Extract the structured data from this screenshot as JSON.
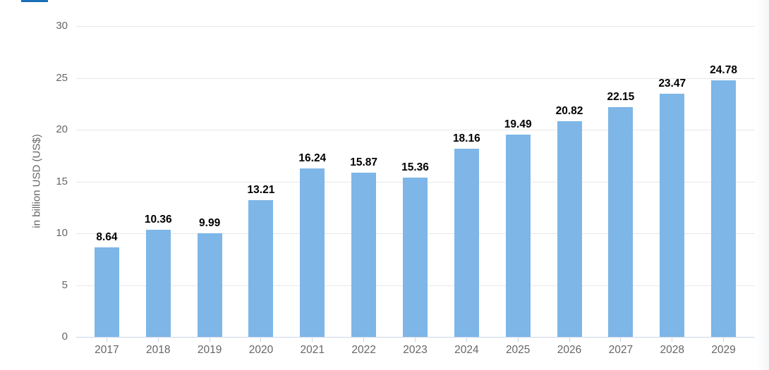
{
  "tab_indicator": {
    "color": "#1a70b8"
  },
  "chart_data": {
    "type": "bar",
    "categories": [
      "2017",
      "2018",
      "2019",
      "2020",
      "2021",
      "2022",
      "2023",
      "2024",
      "2025",
      "2026",
      "2027",
      "2028",
      "2029"
    ],
    "values": [
      8.64,
      10.36,
      9.99,
      13.21,
      16.24,
      15.87,
      15.36,
      18.16,
      19.49,
      20.82,
      22.15,
      23.47,
      24.78
    ],
    "value_labels": [
      "8.64",
      "10.36",
      "9.99",
      "13.21",
      "16.24",
      "15.87",
      "15.36",
      "18.16",
      "19.49",
      "20.82",
      "22.15",
      "23.47",
      "24.78"
    ],
    "title": "",
    "xlabel": "",
    "ylabel": "in billion USD (US$)",
    "ylim": [
      0,
      30
    ],
    "yticks": [
      0,
      5,
      10,
      15,
      20,
      25,
      30
    ],
    "grid": true,
    "legend_position": "none",
    "colors": {
      "bar": "#7db6e7",
      "gridline": "#e7e7e7",
      "axis_line": "#ccd6eb",
      "axis_text": "#666666",
      "value_label_text": "#000000"
    }
  }
}
